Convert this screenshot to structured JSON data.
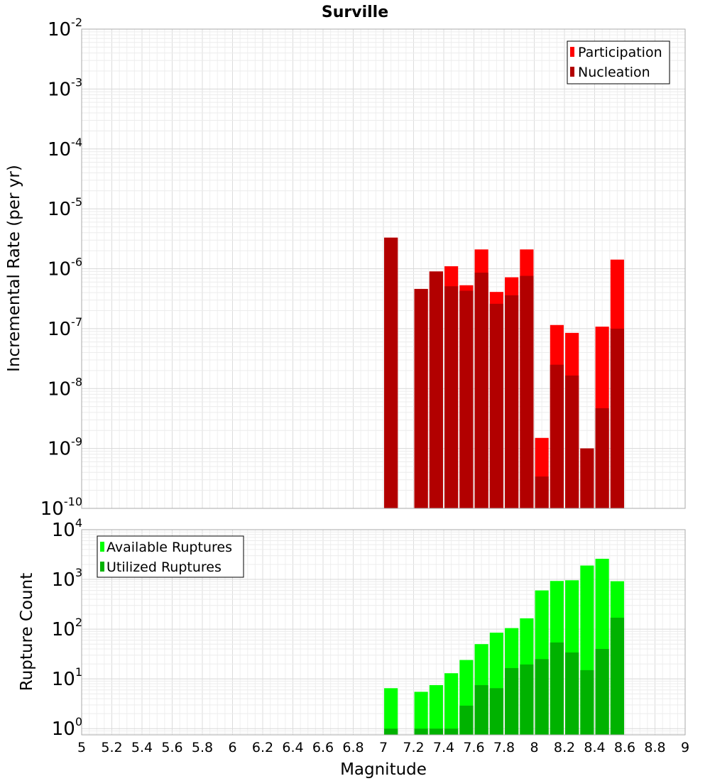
{
  "chart_data": [
    {
      "type": "bar",
      "title": "Surville",
      "ylabel": "Incremental Rate (per yr)",
      "xlabel": "",
      "y_scale": "log",
      "ylim": [
        1e-10,
        0.01
      ],
      "xlim": [
        5,
        9
      ],
      "y_ticks": [
        {
          "base": "10",
          "exp": "-10"
        },
        {
          "base": "10",
          "exp": "-9"
        },
        {
          "base": "10",
          "exp": "-8"
        },
        {
          "base": "10",
          "exp": "-7"
        },
        {
          "base": "10",
          "exp": "-6"
        },
        {
          "base": "10",
          "exp": "-5"
        },
        {
          "base": "10",
          "exp": "-4"
        },
        {
          "base": "10",
          "exp": "-3"
        },
        {
          "base": "10",
          "exp": "-2"
        }
      ],
      "bar_width": 0.09,
      "legend_position": "top-right",
      "grid": true,
      "series": [
        {
          "name": "Participation",
          "color": "#ff0000",
          "points": [
            [
              7.05,
              3.3e-06
            ],
            [
              7.25,
              4.6e-07
            ],
            [
              7.35,
              9e-07
            ],
            [
              7.45,
              1.1e-06
            ],
            [
              7.55,
              5.3e-07
            ],
            [
              7.65,
              2.1e-06
            ],
            [
              7.75,
              4.1e-07
            ],
            [
              7.85,
              7.2e-07
            ],
            [
              7.95,
              2.1e-06
            ],
            [
              8.05,
              1.5e-09
            ],
            [
              8.15,
              1.15e-07
            ],
            [
              8.25,
              8.5e-08
            ],
            [
              8.35,
              1e-09
            ],
            [
              8.45,
              1.08e-07
            ],
            [
              8.55,
              1.42e-06
            ]
          ]
        },
        {
          "name": "Nucleation",
          "color": "#b20000",
          "points": [
            [
              7.05,
              3.3e-06
            ],
            [
              7.25,
              4.6e-07
            ],
            [
              7.35,
              9e-07
            ],
            [
              7.45,
              5.1e-07
            ],
            [
              7.55,
              4.3e-07
            ],
            [
              7.65,
              8.6e-07
            ],
            [
              7.75,
              2.6e-07
            ],
            [
              7.85,
              3.6e-07
            ],
            [
              7.95,
              7.6e-07
            ],
            [
              8.05,
              3.4e-10
            ],
            [
              8.15,
              2.5e-08
            ],
            [
              8.25,
              1.65e-08
            ],
            [
              8.35,
              1e-09
            ],
            [
              8.45,
              4.7e-09
            ],
            [
              8.55,
              1e-07
            ]
          ]
        }
      ]
    },
    {
      "type": "bar",
      "title": "",
      "ylabel": "Rupture Count",
      "xlabel": "Magnitude",
      "y_scale": "log",
      "ylim": [
        0.75,
        10000
      ],
      "xlim": [
        5,
        9
      ],
      "x_ticks": [
        "5",
        "5.2",
        "5.4",
        "5.6",
        "5.8",
        "6",
        "6.2",
        "6.4",
        "6.6",
        "6.8",
        "7",
        "7.2",
        "7.4",
        "7.6",
        "7.8",
        "8",
        "8.2",
        "8.4",
        "8.6",
        "8.8",
        "9"
      ],
      "y_ticks": [
        {
          "base": "10",
          "exp": "0"
        },
        {
          "base": "10",
          "exp": "1"
        },
        {
          "base": "10",
          "exp": "2"
        },
        {
          "base": "10",
          "exp": "3"
        },
        {
          "base": "10",
          "exp": "4"
        }
      ],
      "bar_width": 0.09,
      "legend_position": "top-left",
      "grid": true,
      "series": [
        {
          "name": "Available Ruptures",
          "color": "#00ff00",
          "points": [
            [
              7.05,
              6.5
            ],
            [
              7.25,
              5.5
            ],
            [
              7.35,
              7.5
            ],
            [
              7.45,
              13
            ],
            [
              7.55,
              24
            ],
            [
              7.65,
              50
            ],
            [
              7.75,
              85
            ],
            [
              7.85,
              105
            ],
            [
              7.95,
              165
            ],
            [
              8.05,
              600
            ],
            [
              8.15,
              930
            ],
            [
              8.25,
              960
            ],
            [
              8.35,
              1900
            ],
            [
              8.45,
              2600
            ],
            [
              8.55,
              920
            ]
          ]
        },
        {
          "name": "Utilized Ruptures",
          "color": "#00b200",
          "points": [
            [
              7.05,
              1
            ],
            [
              7.25,
              1
            ],
            [
              7.35,
              1
            ],
            [
              7.45,
              1
            ],
            [
              7.55,
              2.9
            ],
            [
              7.65,
              7.5
            ],
            [
              7.75,
              6.5
            ],
            [
              7.85,
              16.5
            ],
            [
              7.95,
              19.5
            ],
            [
              8.05,
              25
            ],
            [
              8.15,
              54
            ],
            [
              8.25,
              34
            ],
            [
              8.35,
              15
            ],
            [
              8.45,
              40
            ],
            [
              8.55,
              170
            ]
          ]
        }
      ]
    }
  ]
}
